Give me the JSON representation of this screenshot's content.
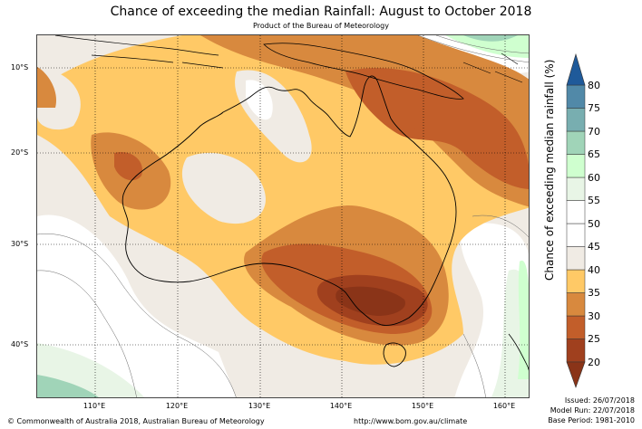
{
  "title": "Chance of exceeding the median Rainfall: August to October 2018",
  "subtitle": "Product of the Bureau of Meteorology",
  "map": {
    "lat_labels": [
      {
        "text": "10°S",
        "lat": -10
      },
      {
        "text": "20°S",
        "lat": -20
      },
      {
        "text": "30°S",
        "lat": -30
      },
      {
        "text": "40°S",
        "lat": -40
      }
    ],
    "lon_labels": [
      {
        "text": "110°E",
        "lon": 110
      },
      {
        "text": "120°E",
        "lon": 120
      },
      {
        "text": "130°E",
        "lon": 130
      },
      {
        "text": "140°E",
        "lon": 140
      },
      {
        "text": "150°E",
        "lon": 150
      },
      {
        "text": "160°E",
        "lon": 160
      }
    ]
  },
  "colorbar": {
    "title": "Chance of exceeding median rainfall (%)",
    "levels": [
      "20",
      "25",
      "30",
      "35",
      "40",
      "45",
      "50",
      "55",
      "60",
      "65",
      "70",
      "75",
      "80"
    ],
    "colors": [
      "#a0401e",
      "#c25e2a",
      "#d8893e",
      "#ffc966",
      "#f0ebe4",
      "#ffffff",
      "#ffffff",
      "#e8f5e6",
      "#cfffcf",
      "#a0d4b8",
      "#78aeb0",
      "#5189a8",
      "#1f5a9a"
    ],
    "under_color": "#8a3418",
    "over_color": "#1f5a9a"
  },
  "footer": {
    "copyright": "© Commonwealth of Australia 2018, Australian Bureau of Meteorology",
    "url": "http://www.bom.gov.au/climate",
    "issued": "Issued: 26/07/2018",
    "model_run": "Model Run: 22/07/2018",
    "base_period": "Base Period: 1981-2010"
  }
}
